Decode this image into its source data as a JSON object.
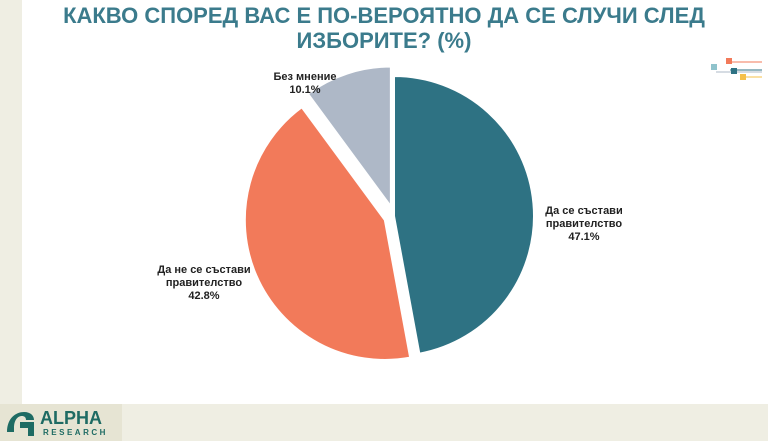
{
  "title_lines": [
    "КАКВО СПОРЕД ВАС Е ПО-ВЕРОЯТНО ДА СЕ СЛУЧИ СЛЕД",
    "ИЗБОРИТЕ? (%)"
  ],
  "chart_data": {
    "type": "pie",
    "title": "КАКВО СПОРЕД ВАС Е ПО-ВЕРОЯТНО ДА СЕ СЛУЧИ СЛЕД ИЗБОРИТЕ? (%)",
    "slices": [
      {
        "label": "Да се състави правителство",
        "value": 47.1,
        "display": "47.1%",
        "color": "#2e7283"
      },
      {
        "label": "Да не се състави правителство",
        "value": 42.8,
        "display": "42.8%",
        "color": "#f27a5a"
      },
      {
        "label": "Без мнение",
        "value": 10.1,
        "display": "10.1%",
        "color": "#aeb8c7"
      }
    ]
  },
  "labels": {
    "s0": [
      "Да се състави",
      "правителство",
      "47.1%"
    ],
    "s1": [
      "Да не се състави",
      "правителство",
      "42.8%"
    ],
    "s2": [
      "Без мнение",
      "10.1%"
    ]
  },
  "logo": {
    "word": "ALPHA",
    "sub": "RESEARCH"
  },
  "colors": {
    "title": "#3b7b8c",
    "background": "#efeee3",
    "logo": "#1e6b63"
  }
}
